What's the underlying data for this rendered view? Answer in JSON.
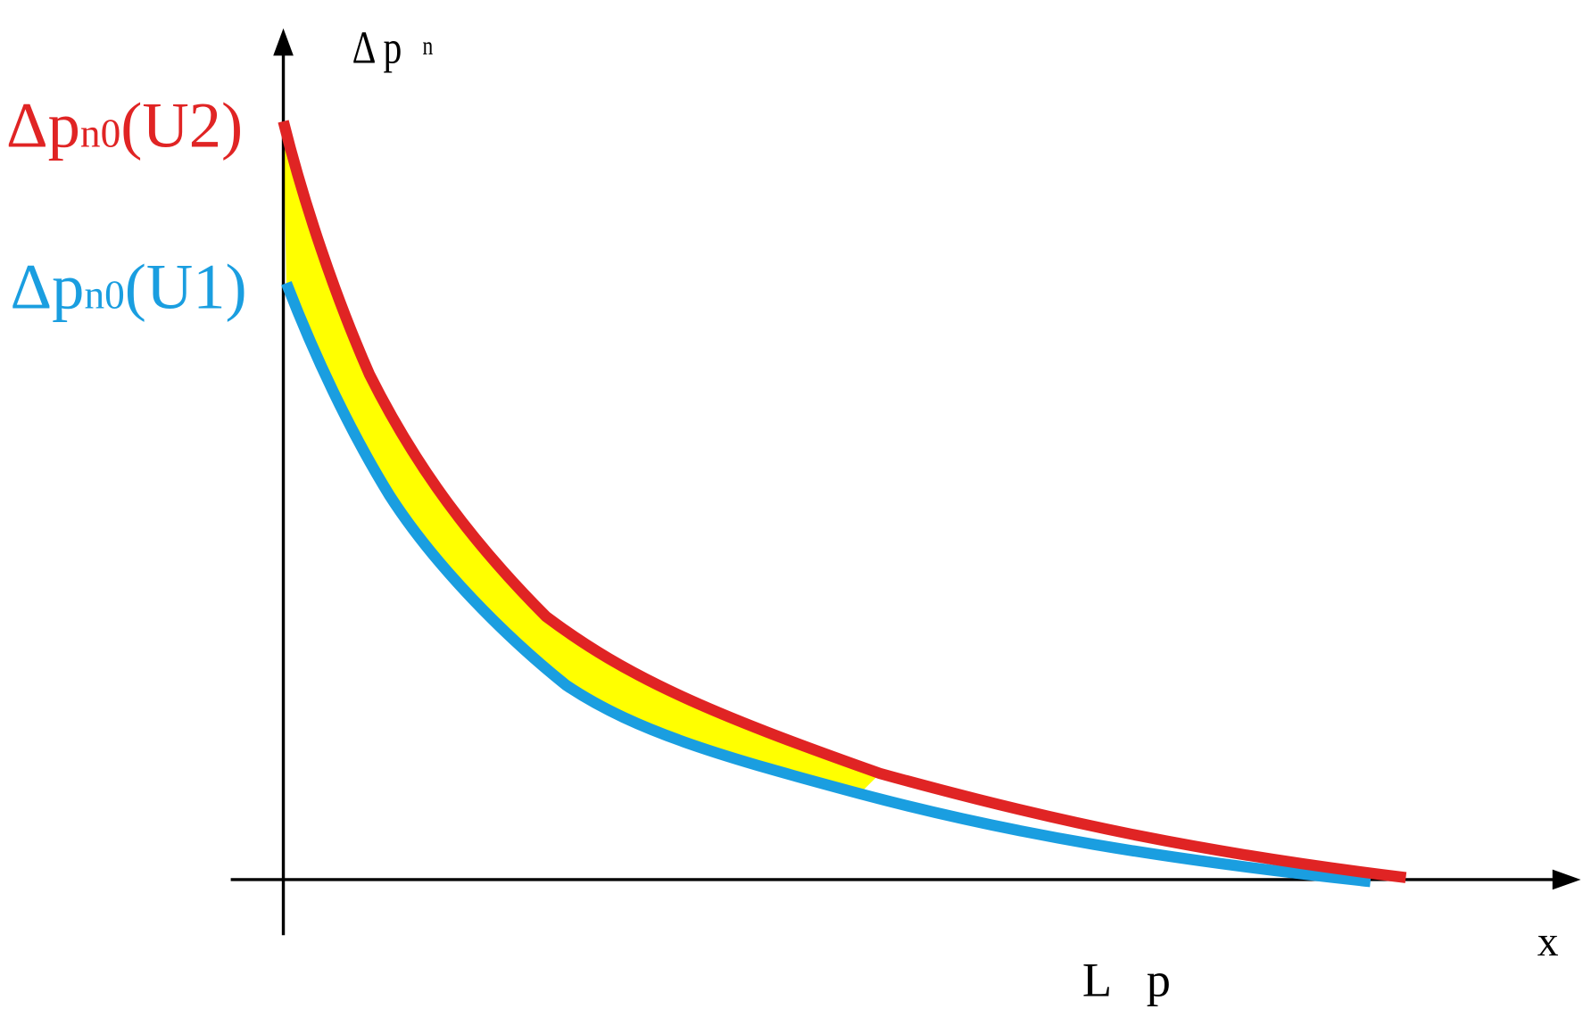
{
  "axes": {
    "y_label": {
      "main": "Δ p",
      "sub": "n"
    },
    "x_label": "x",
    "x_mark": "L p"
  },
  "curves": [
    {
      "label": {
        "main": "Δp",
        "sub": "n0",
        "tail": "(U2)"
      },
      "color": "#e02424"
    },
    {
      "label": {
        "main": "Δp",
        "sub": "n0",
        "tail": "(U1)"
      },
      "color": "#1a9ee0"
    }
  ]
}
